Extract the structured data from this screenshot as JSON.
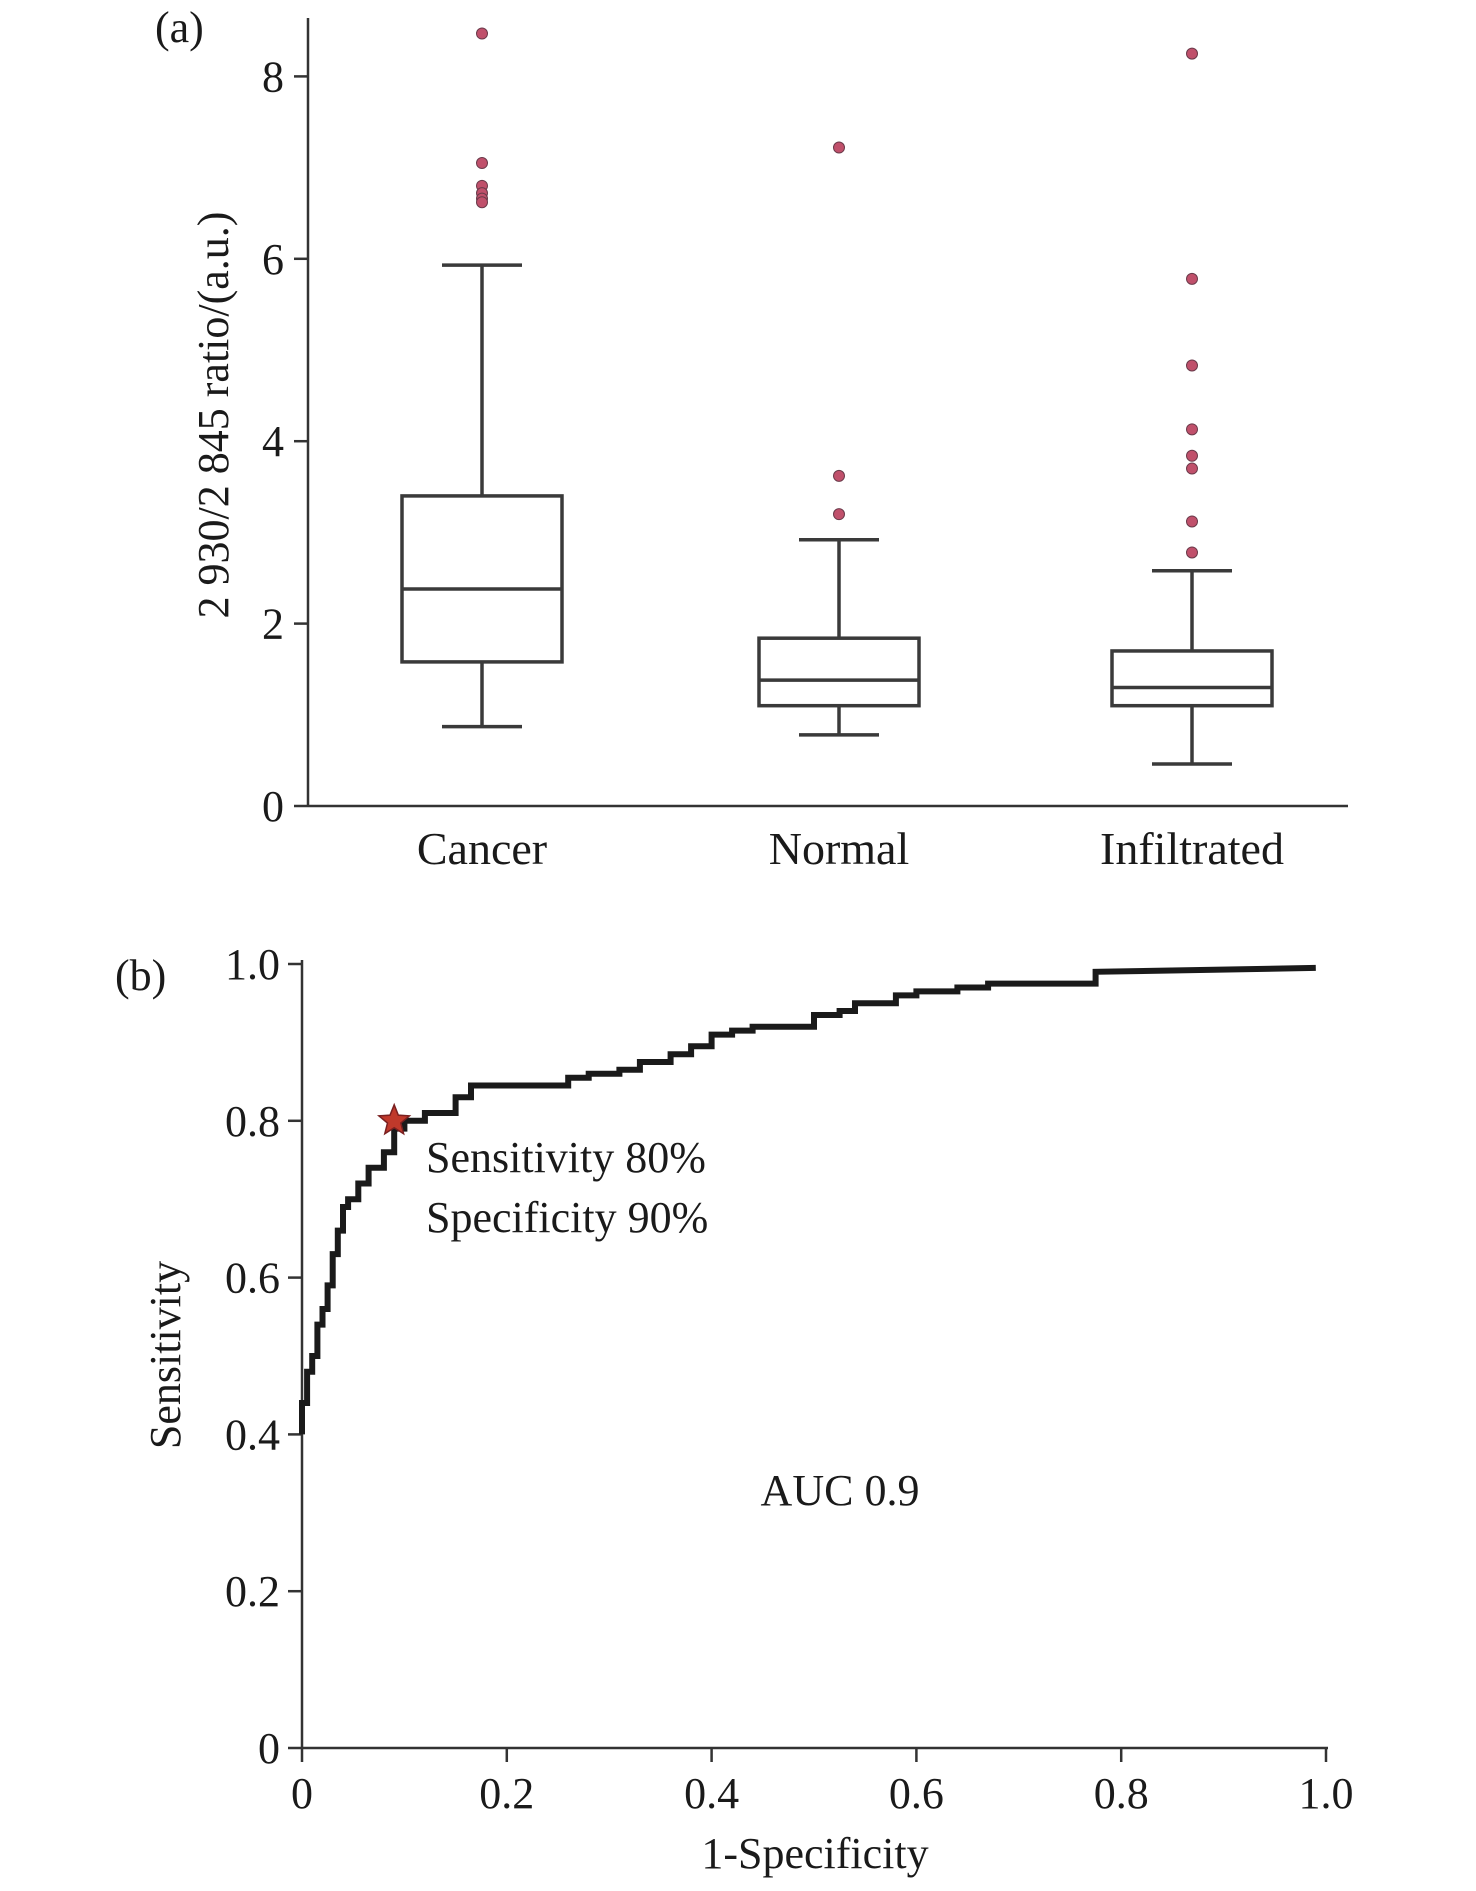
{
  "chart_data": [
    {
      "type": "box",
      "panel_label": "(a)",
      "ylabel": "2 930/2 845 ratio/(a.u.)",
      "ylim": [
        0,
        8.5
      ],
      "yticks": [
        "0",
        "2",
        "4",
        "6",
        "8"
      ],
      "categories": [
        "Cancer",
        "Normal",
        "Infiltrated"
      ],
      "boxes": [
        {
          "category": "Cancer",
          "whisker_low": 0.87,
          "q1": 1.58,
          "median": 2.38,
          "q3": 3.4,
          "whisker_high": 5.93,
          "outliers": [
            8.47,
            7.05,
            6.8,
            6.72,
            6.66,
            6.62
          ]
        },
        {
          "category": "Normal",
          "whisker_low": 0.78,
          "q1": 1.1,
          "median": 1.38,
          "q3": 1.84,
          "whisker_high": 2.92,
          "outliers": [
            7.22,
            3.62,
            3.2
          ]
        },
        {
          "category": "Infiltrated",
          "whisker_low": 0.46,
          "q1": 1.1,
          "median": 1.3,
          "q3": 1.7,
          "whisker_high": 2.58,
          "outliers": [
            8.25,
            5.78,
            4.83,
            4.13,
            3.84,
            3.7,
            3.12,
            2.78
          ]
        }
      ],
      "outlier_color": "#c0506b"
    },
    {
      "type": "line",
      "panel_label": "(b)",
      "xlabel": "1-Specificity",
      "ylabel": "Sensitivity",
      "xlim": [
        0,
        1.0
      ],
      "ylim": [
        0,
        1.0
      ],
      "xticks": [
        "0",
        "0.2",
        "0.4",
        "0.6",
        "0.8",
        "1.0"
      ],
      "yticks": [
        "0",
        "0.2",
        "0.4",
        "0.6",
        "0.8",
        "1.0"
      ],
      "series": [
        {
          "x": [
            0,
            0,
            0.005,
            0.005,
            0.01,
            0.01,
            0.015,
            0.015,
            0.02,
            0.02,
            0.025,
            0.025,
            0.03,
            0.03,
            0.035,
            0.035,
            0.04,
            0.04,
            0.045,
            0.045,
            0.055,
            0.055,
            0.065,
            0.065,
            0.08,
            0.08,
            0.09,
            0.09,
            0.1,
            0.1,
            0.12,
            0.12,
            0.15,
            0.15,
            0.165,
            0.165,
            0.26,
            0.26,
            0.28,
            0.28,
            0.31,
            0.31,
            0.33,
            0.33,
            0.36,
            0.36,
            0.38,
            0.38,
            0.4,
            0.4,
            0.42,
            0.42,
            0.44,
            0.44,
            0.5,
            0.5,
            0.525,
            0.525,
            0.54,
            0.54,
            0.58,
            0.58,
            0.6,
            0.6,
            0.64,
            0.64,
            0.67,
            0.67,
            0.775,
            0.775,
            0.99
          ],
          "y": [
            0.4,
            0.44,
            0.44,
            0.48,
            0.48,
            0.5,
            0.5,
            0.54,
            0.54,
            0.56,
            0.56,
            0.59,
            0.59,
            0.63,
            0.63,
            0.66,
            0.66,
            0.69,
            0.69,
            0.7,
            0.7,
            0.72,
            0.72,
            0.74,
            0.74,
            0.76,
            0.76,
            0.79,
            0.79,
            0.8,
            0.8,
            0.81,
            0.81,
            0.83,
            0.83,
            0.845,
            0.845,
            0.855,
            0.855,
            0.86,
            0.86,
            0.865,
            0.865,
            0.875,
            0.875,
            0.885,
            0.885,
            0.895,
            0.895,
            0.91,
            0.91,
            0.915,
            0.915,
            0.92,
            0.92,
            0.935,
            0.935,
            0.94,
            0.94,
            0.95,
            0.95,
            0.96,
            0.96,
            0.965,
            0.965,
            0.97,
            0.97,
            0.975,
            0.975,
            0.99,
            0.995
          ]
        }
      ],
      "cutoff_point": {
        "x": 0.09,
        "y": 0.8,
        "color": "#c0392b"
      },
      "annotations": [
        "Sensitivity 80%",
        "Specificity 90%",
        "AUC 0.9"
      ]
    }
  ]
}
